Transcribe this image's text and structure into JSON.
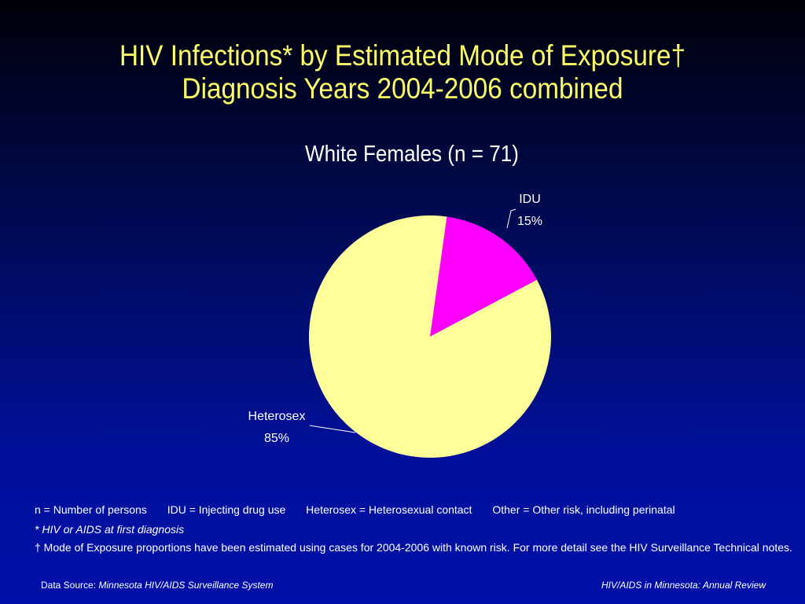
{
  "title": {
    "line1": "HIV Infections* by Estimated Mode of Exposure†",
    "line2": "Diagnosis Years 2004-2006 combined"
  },
  "chart_data": {
    "type": "pie",
    "subtitle": "White Females (n = 71)",
    "slices": [
      {
        "label": "IDU",
        "value": 15,
        "value_label": "15%",
        "color": "#ff00ff"
      },
      {
        "label": "Heterosex",
        "value": 85,
        "value_label": "85%",
        "color": "#ffff99"
      }
    ]
  },
  "footnotes": {
    "definitions": [
      "n = Number of persons",
      "IDU = Injecting drug use",
      "Heterosex = Heterosexual contact",
      "Other = Other risk, including perinatal"
    ],
    "asterisk_note": "* HIV or AIDS at first diagnosis",
    "dagger_note": "† Mode of Exposure proportions have been estimated using cases for 2004-2006 with known risk. For more detail see the HIV Surveillance Technical notes."
  },
  "source": {
    "prefix": "Data Source: ",
    "name": "Minnesota HIV/AIDS Surveillance System",
    "right": "HIV/AIDS in Minnesota: Annual Review"
  }
}
